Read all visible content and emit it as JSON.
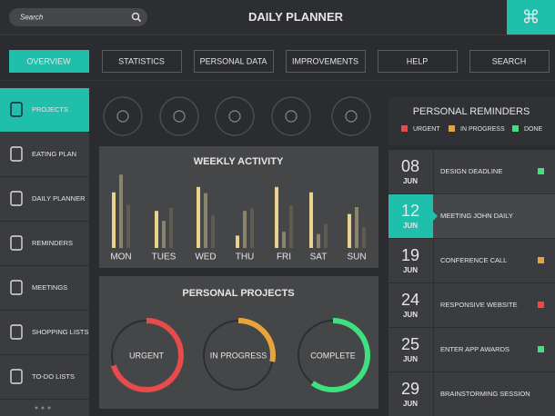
{
  "search": {
    "placeholder": "Search"
  },
  "header": {
    "title": "DAILY PLANNER"
  },
  "nav": {
    "items": [
      "OVERVIEW",
      "STATISTICS",
      "PERSONAL DATA",
      "IMPROVEMENTS",
      "HELP",
      "SEARCH"
    ],
    "active": 0
  },
  "sidebar": {
    "items": [
      "PROJECTS",
      "EATING PLAN",
      "DAILY PLANNER",
      "REMINDERS",
      "MEETINGS",
      "SHOPPING LISTS",
      "TO-DO LISTS"
    ],
    "active": 0
  },
  "weekly_activity": {
    "type": "bar",
    "title": "WEEKLY ACTIVITY",
    "categories": [
      "MON",
      "TUES",
      "WED",
      "THU",
      "FRI",
      "SAT",
      "SUN"
    ],
    "series": [
      {
        "color": "#e9d38c",
        "values": [
          72,
          48,
          79,
          16,
          79,
          72,
          44
        ]
      },
      {
        "color": "#8b846c",
        "values": [
          95,
          35,
          71,
          48,
          21,
          18,
          53
        ]
      },
      {
        "color": "#5e5b51",
        "values": [
          56,
          52,
          42,
          51,
          55,
          31,
          27
        ]
      }
    ],
    "ylim": [
      0,
      100
    ]
  },
  "personal_projects": {
    "type": "donut",
    "title": "PERSONAL PROJECTS",
    "categories": [
      "URGENT",
      "IN PROGRESS",
      "COMPLETE"
    ],
    "values": [
      70,
      28,
      60
    ],
    "colors": [
      "#e84b4b",
      "#e8a33c",
      "#3ee07f"
    ]
  },
  "reminders": {
    "title": "PERSONAL REMINDERS",
    "legend": [
      {
        "name": "URGENT",
        "color": "#e84b4b"
      },
      {
        "name": "IN PROGRESS",
        "color": "#e8a33c"
      },
      {
        "name": "DONE",
        "color": "#3ee07f"
      }
    ],
    "items": [
      {
        "day": "08",
        "month": "JUN",
        "title": "DESIGN DEADLINE",
        "color": "#3ee07f"
      },
      {
        "day": "12",
        "month": "JUN",
        "title": "MEETING JOHN DAILY",
        "selected": true
      },
      {
        "day": "19",
        "month": "JUN",
        "title": "CONFERENCE CALL",
        "color": "#e8a33c"
      },
      {
        "day": "24",
        "month": "JUN",
        "title": "RESPONSIVE WEBSITE",
        "color": "#e84b4b"
      },
      {
        "day": "25",
        "month": "JUN",
        "title": "ENTER APP AWARDS",
        "color": "#3ee07f"
      },
      {
        "day": "29",
        "month": "JUN",
        "title": "BRAINSTORMING SESSION"
      }
    ]
  }
}
